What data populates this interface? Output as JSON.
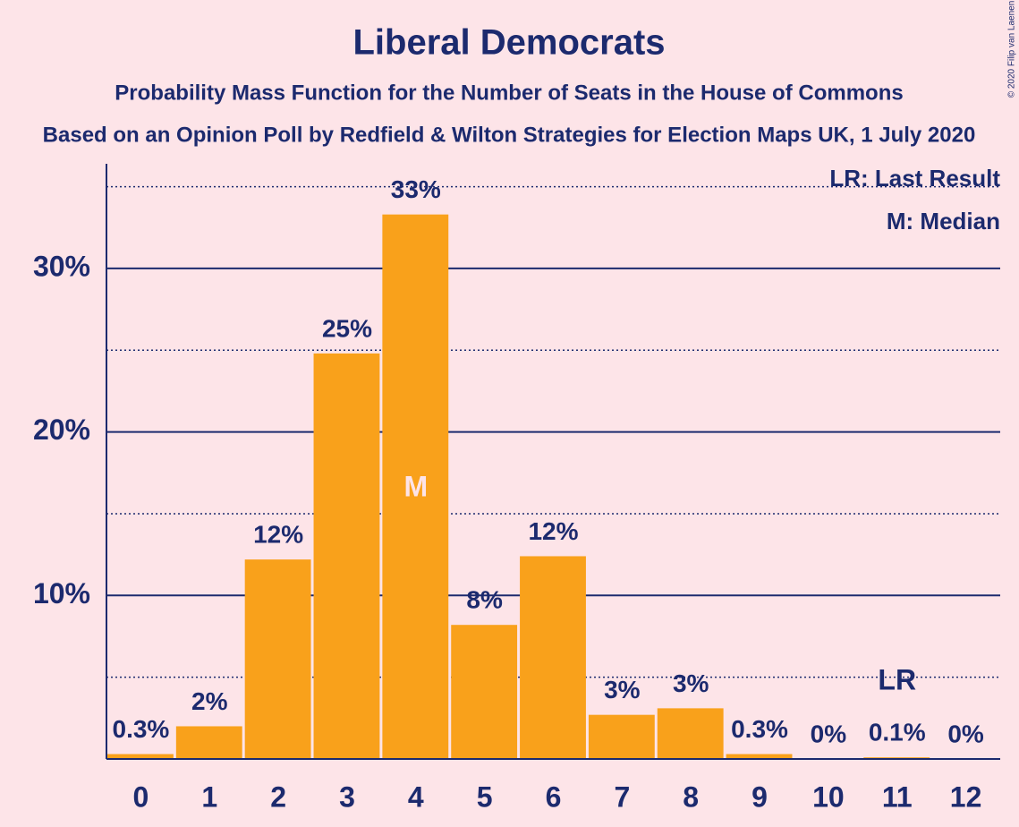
{
  "chart_data": {
    "type": "bar",
    "title": "Liberal Democrats",
    "subtitle": "Probability Mass Function for the Number of Seats in the House of Commons",
    "source": "Based on an Opinion Poll by Redfield & Wilton Strategies for Election Maps UK, 1 July 2020",
    "copyright": "© 2020 Filip van Laenen",
    "categories": [
      0,
      1,
      2,
      3,
      4,
      5,
      6,
      7,
      8,
      9,
      10,
      11,
      12
    ],
    "values": [
      0.3,
      2.0,
      12.2,
      24.8,
      33.3,
      8.2,
      12.4,
      2.7,
      3.1,
      0.3,
      0,
      0.1,
      0
    ],
    "value_labels": [
      "0.3%",
      "2%",
      "12%",
      "25%",
      "33%",
      "8%",
      "12%",
      "3%",
      "3%",
      "0.3%",
      "0%",
      "0.1%",
      "0%"
    ],
    "color": "#f9a11b",
    "ylim": [
      0,
      36.4
    ],
    "yticks": [
      {
        "value": 10,
        "label": "10%"
      },
      {
        "value": 20,
        "label": "20%"
      },
      {
        "value": 30,
        "label": "30%"
      }
    ],
    "minor_gridlines": [
      5,
      15,
      25,
      35
    ],
    "grid": true,
    "median_index": 4,
    "median_label": "M",
    "last_result_index": 11,
    "last_result_label": "LR",
    "legend": [
      "LR: Last Result",
      "M: Median"
    ],
    "legend_position": "top-right"
  }
}
